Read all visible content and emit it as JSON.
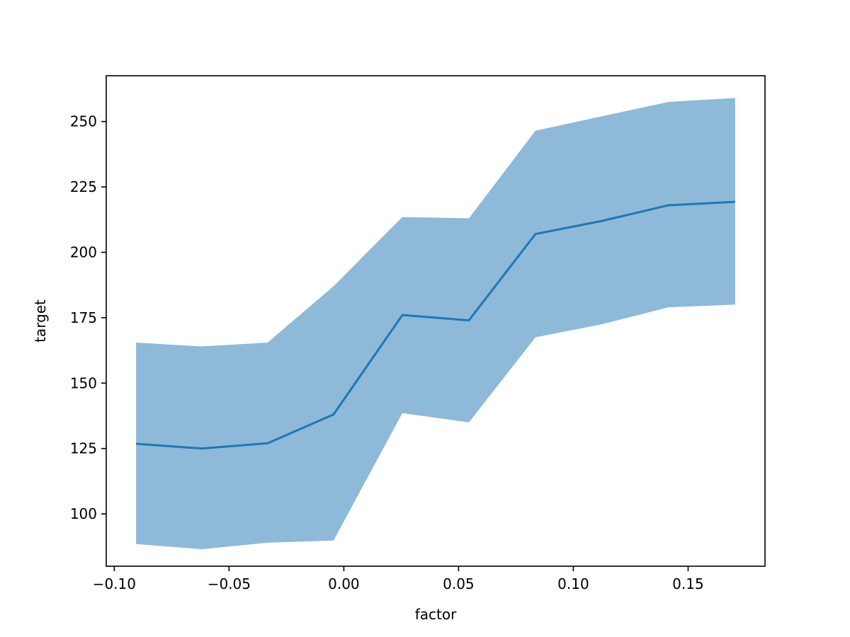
{
  "chart_data": {
    "type": "line",
    "xlabel": "factor",
    "ylabel": "target",
    "xlim": [
      -0.1035,
      0.1835
    ],
    "ylim": [
      80,
      267.5
    ],
    "x": [
      -0.0905,
      -0.0618,
      -0.0332,
      -0.0045,
      0.0255,
      0.0545,
      0.0835,
      0.1125,
      0.1415,
      0.1705
    ],
    "series": [
      {
        "values": [
          126.8,
          125.0,
          127.0,
          138.0,
          176.0,
          174.0,
          207.0,
          212.0,
          218.0,
          219.3
        ],
        "lower": [
          88.5,
          86.5,
          89.0,
          89.8,
          138.5,
          135.0,
          167.5,
          172.5,
          179.0,
          180.0
        ],
        "upper": [
          165.5,
          164.0,
          165.5,
          187.0,
          213.5,
          213.0,
          246.5,
          252.0,
          257.5,
          259.0
        ],
        "color": "#1f77b4",
        "band_color": "#8fb9d9"
      }
    ],
    "x_ticks": [
      -0.1,
      -0.05,
      0.0,
      0.05,
      0.1,
      0.15
    ],
    "x_tick_labels": [
      "−0.10",
      "−0.05",
      "0.00",
      "0.05",
      "0.10",
      "0.15"
    ],
    "y_ticks": [
      100,
      125,
      150,
      175,
      200,
      225,
      250
    ],
    "y_tick_labels": [
      "100",
      "125",
      "150",
      "175",
      "200",
      "225",
      "250"
    ],
    "grid": false
  }
}
